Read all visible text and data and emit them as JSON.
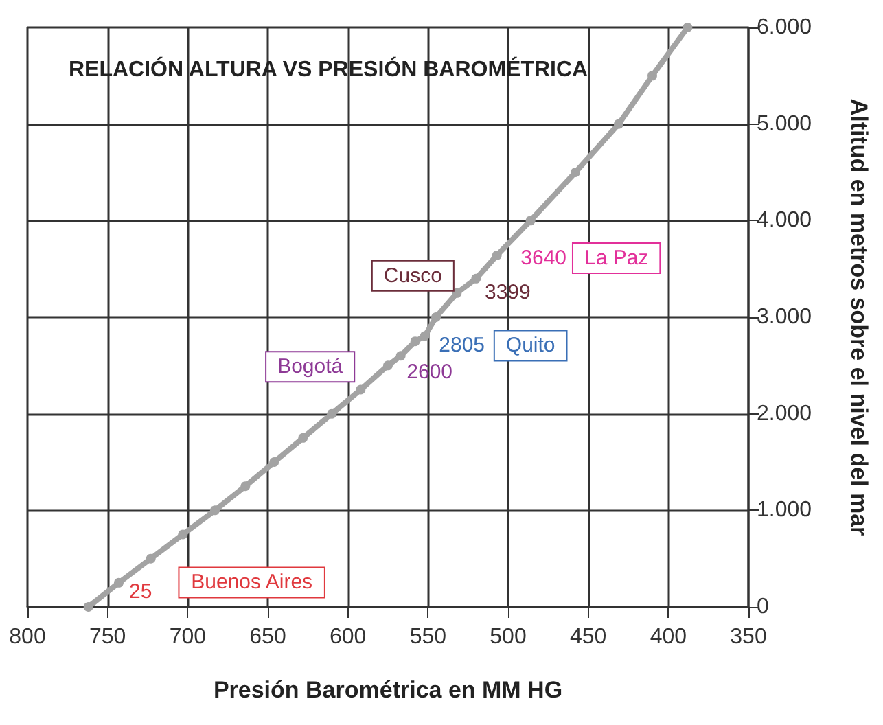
{
  "chart_data": {
    "type": "line",
    "title": "RELACIÓN ALTURA VS PRESIÓN BAROMÉTRICA",
    "xlabel": "Presión Barométrica en MM HG",
    "ylabel": "Altitud en metros sobre el nivel del mar",
    "x": [
      762,
      743,
      723,
      703,
      683,
      664,
      646,
      628,
      610,
      592,
      575,
      567,
      558,
      552,
      545,
      532,
      520,
      507,
      486,
      458,
      431,
      410,
      388
    ],
    "series": [
      {
        "color": "#a3a3a3",
        "values": [
          0,
          250,
          500,
          750,
          1000,
          1250,
          1500,
          1750,
          2000,
          2250,
          2500,
          2600,
          2750,
          2805,
          3000,
          3250,
          3399,
          3640,
          4000,
          4500,
          5000,
          5500,
          6000
        ]
      }
    ],
    "xlim": [
      800,
      350
    ],
    "xticks": [
      800,
      750,
      700,
      650,
      600,
      550,
      500,
      450,
      400,
      350
    ],
    "ylim": [
      0,
      6000
    ],
    "yticks": [
      0,
      {
        "value": 1000,
        "label": "1.000"
      },
      {
        "value": 2000,
        "label": "2.000"
      },
      {
        "value": 3000,
        "label": "3.000"
      },
      {
        "value": 4000,
        "label": "4.000"
      },
      {
        "value": 5000,
        "label": "5.000"
      },
      {
        "value": 6000,
        "label": "6.000"
      }
    ],
    "annotations": [
      {
        "text": "25",
        "x": 762,
        "y": 25
      },
      "Buenos Aires",
      {
        "text": "2600",
        "x": 567,
        "y": 2600
      },
      "Bogotá",
      {
        "text": "2805",
        "x": 552,
        "y": 2805
      },
      "Quito",
      {
        "text": "3399",
        "x": 520,
        "y": 3399
      },
      "Cusco",
      {
        "text": "3640",
        "x": 507,
        "y": 3640
      },
      "La Paz"
    ],
    "grid": true,
    "marker": "circle",
    "line_style": "solid"
  }
}
